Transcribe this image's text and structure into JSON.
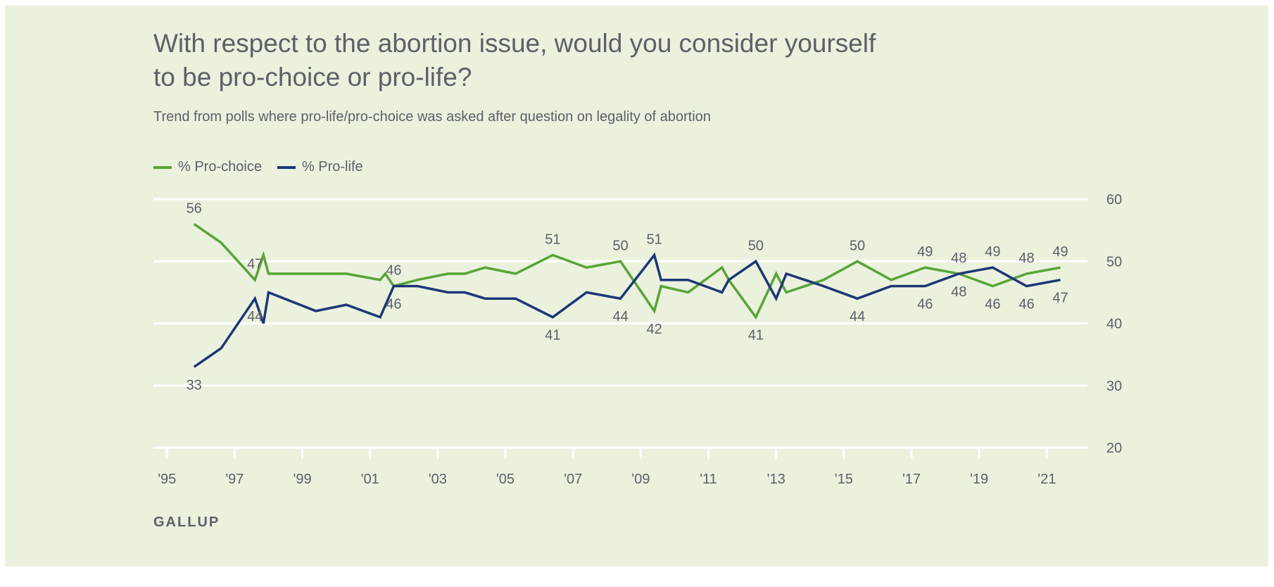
{
  "title_lines": [
    "With respect to the abortion issue, would you consider yourself",
    "to be pro-choice or pro-life?"
  ],
  "subtitle": "Trend from polls where pro-life/pro-choice was asked after question on legality of abortion",
  "source": "GALLUP",
  "chart_data": {
    "type": "line",
    "title": "With respect to the abortion issue, would you consider yourself to be pro-choice or pro-life?",
    "subtitle": "Trend from polls where pro-life/pro-choice was asked after question on legality of abortion",
    "legend_position": "top-left",
    "grid": true,
    "ylim": [
      20,
      60
    ],
    "yticks": [
      20,
      30,
      40,
      50,
      60
    ],
    "y_axis_side": "right",
    "xlim": [
      1994.6,
      2022.2
    ],
    "xticks": [
      1995,
      1997,
      1999,
      2001,
      2003,
      2005,
      2007,
      2009,
      2011,
      2013,
      2015,
      2017,
      2019,
      2021
    ],
    "xtick_labels": [
      "'95",
      "'97",
      "'99",
      "'01",
      "'03",
      "'05",
      "'07",
      "'09",
      "'11",
      "'13",
      "'15",
      "'17",
      "'19",
      "'21"
    ],
    "series": [
      {
        "name": "% Pro-choice",
        "color": "#58a436",
        "points": [
          {
            "x": 1995.8,
            "y": 56,
            "label": "56",
            "label_pos": "above"
          },
          {
            "x": 1996.6,
            "y": 53
          },
          {
            "x": 1997.6,
            "y": 47,
            "label": "47",
            "label_pos": "above"
          },
          {
            "x": 1997.85,
            "y": 51
          },
          {
            "x": 1998.0,
            "y": 48
          },
          {
            "x": 2000.3,
            "y": 48
          },
          {
            "x": 2001.3,
            "y": 47
          },
          {
            "x": 2001.45,
            "y": 48
          },
          {
            "x": 2001.7,
            "y": 46,
            "label": "46",
            "label_pos": "above"
          },
          {
            "x": 2002.4,
            "y": 47
          },
          {
            "x": 2003.3,
            "y": 48
          },
          {
            "x": 2003.8,
            "y": 48
          },
          {
            "x": 2004.4,
            "y": 49
          },
          {
            "x": 2005.3,
            "y": 48
          },
          {
            "x": 2006.4,
            "y": 51,
            "label": "51",
            "label_pos": "above"
          },
          {
            "x": 2007.4,
            "y": 49
          },
          {
            "x": 2008.4,
            "y": 50,
            "label": "50",
            "label_pos": "above"
          },
          {
            "x": 2009.4,
            "y": 42,
            "label": "42",
            "label_pos": "below"
          },
          {
            "x": 2009.6,
            "y": 46
          },
          {
            "x": 2010.4,
            "y": 45
          },
          {
            "x": 2011.4,
            "y": 49
          },
          {
            "x": 2011.6,
            "y": 47
          },
          {
            "x": 2012.4,
            "y": 41,
            "label": "41",
            "label_pos": "below"
          },
          {
            "x": 2013.0,
            "y": 48
          },
          {
            "x": 2013.3,
            "y": 45
          },
          {
            "x": 2014.4,
            "y": 47
          },
          {
            "x": 2015.4,
            "y": 50,
            "label": "50",
            "label_pos": "above"
          },
          {
            "x": 2016.4,
            "y": 47
          },
          {
            "x": 2017.4,
            "y": 49,
            "label": "49",
            "label_pos": "above"
          },
          {
            "x": 2018.4,
            "y": 48,
            "label": "48",
            "label_pos": "above"
          },
          {
            "x": 2019.4,
            "y": 46,
            "label": "46",
            "label_pos": "below"
          },
          {
            "x": 2020.4,
            "y": 48,
            "label": "48",
            "label_pos": "above"
          },
          {
            "x": 2021.4,
            "y": 49,
            "label": "49",
            "label_pos": "above"
          }
        ]
      },
      {
        "name": "% Pro-life",
        "color": "#1d3677",
        "points": [
          {
            "x": 1995.8,
            "y": 33,
            "label": "33",
            "label_pos": "below"
          },
          {
            "x": 1996.6,
            "y": 36
          },
          {
            "x": 1997.6,
            "y": 44,
            "label": "44",
            "label_pos": "below"
          },
          {
            "x": 1997.85,
            "y": 40
          },
          {
            "x": 1998.0,
            "y": 45
          },
          {
            "x": 1999.4,
            "y": 42
          },
          {
            "x": 2000.3,
            "y": 43
          },
          {
            "x": 2001.3,
            "y": 41
          },
          {
            "x": 2001.7,
            "y": 46,
            "label": "46",
            "label_pos": "below"
          },
          {
            "x": 2002.4,
            "y": 46
          },
          {
            "x": 2003.3,
            "y": 45
          },
          {
            "x": 2003.8,
            "y": 45
          },
          {
            "x": 2004.4,
            "y": 44
          },
          {
            "x": 2005.3,
            "y": 44
          },
          {
            "x": 2006.4,
            "y": 41,
            "label": "41",
            "label_pos": "below"
          },
          {
            "x": 2007.4,
            "y": 45
          },
          {
            "x": 2008.4,
            "y": 44,
            "label": "44",
            "label_pos": "below"
          },
          {
            "x": 2009.4,
            "y": 51,
            "label": "51",
            "label_pos": "above"
          },
          {
            "x": 2009.6,
            "y": 47
          },
          {
            "x": 2010.4,
            "y": 47
          },
          {
            "x": 2011.4,
            "y": 45
          },
          {
            "x": 2011.6,
            "y": 47
          },
          {
            "x": 2012.4,
            "y": 50,
            "label": "50",
            "label_pos": "above"
          },
          {
            "x": 2013.0,
            "y": 44
          },
          {
            "x": 2013.3,
            "y": 48
          },
          {
            "x": 2014.4,
            "y": 46
          },
          {
            "x": 2015.4,
            "y": 44,
            "label": "44",
            "label_pos": "below"
          },
          {
            "x": 2016.4,
            "y": 46
          },
          {
            "x": 2017.4,
            "y": 46,
            "label": "46",
            "label_pos": "below"
          },
          {
            "x": 2018.4,
            "y": 48,
            "label": "48",
            "label_pos": "below"
          },
          {
            "x": 2019.4,
            "y": 49,
            "label": "49",
            "label_pos": "above"
          },
          {
            "x": 2020.4,
            "y": 46,
            "label": "46",
            "label_pos": "below"
          },
          {
            "x": 2021.4,
            "y": 47,
            "label": "47",
            "label_pos": "below"
          }
        ]
      }
    ]
  }
}
